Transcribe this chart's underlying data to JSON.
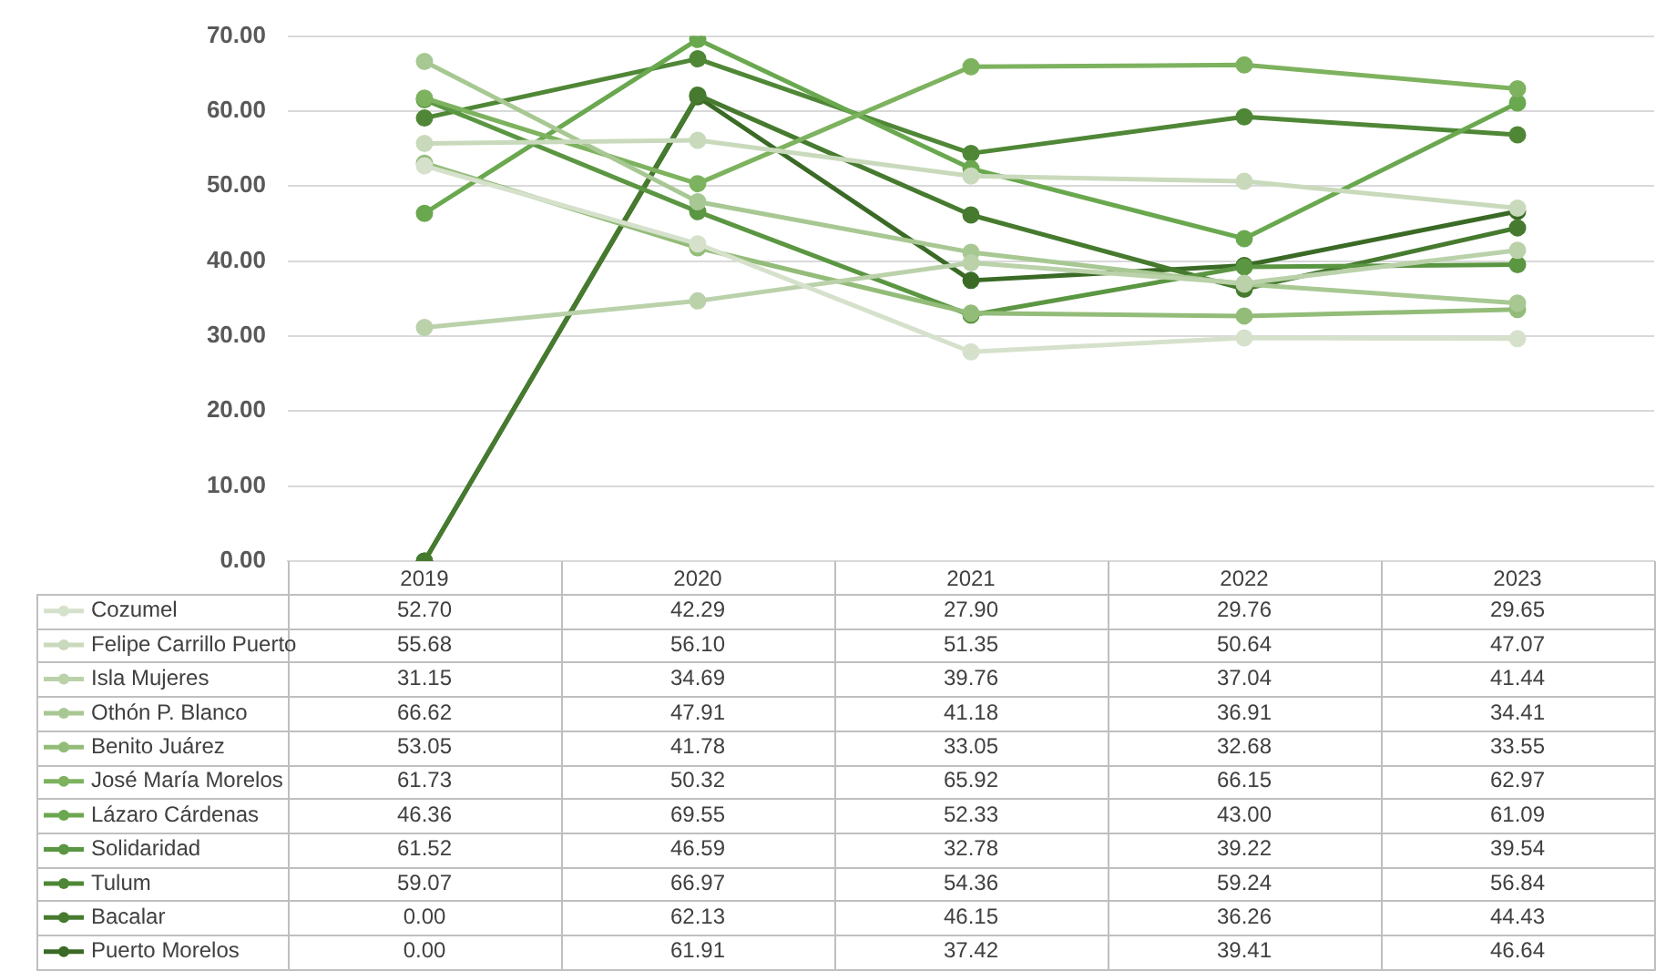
{
  "chart_data": {
    "type": "line",
    "categories": [
      "2019",
      "2020",
      "2021",
      "2022",
      "2023"
    ],
    "ylim": [
      0,
      70
    ],
    "yticks": [
      {
        "value": 0,
        "label": "0.00"
      },
      {
        "value": 10,
        "label": "10.00"
      },
      {
        "value": 20,
        "label": "20.00"
      },
      {
        "value": 30,
        "label": "30.00"
      },
      {
        "value": 40,
        "label": "40.00"
      },
      {
        "value": 50,
        "label": "50.00"
      },
      {
        "value": 60,
        "label": "60.00"
      },
      {
        "value": 70,
        "label": "70.00"
      }
    ],
    "grid": "y",
    "legend": "bottom",
    "marker": "circle",
    "line_style": "solid",
    "series": [
      {
        "name": "Cozumel",
        "color": "#d6e1cc",
        "values": [
          52.7,
          42.29,
          27.9,
          29.76,
          29.65
        ],
        "value_labels": [
          "52.70",
          "42.29",
          "27.90",
          "29.76",
          "29.65"
        ]
      },
      {
        "name": "Felipe Carrillo Puerto",
        "color": "#c9dabc",
        "values": [
          55.68,
          56.1,
          51.35,
          50.64,
          47.07
        ],
        "value_labels": [
          "55.68",
          "56.10",
          "51.35",
          "50.64",
          "47.07"
        ]
      },
      {
        "name": "Isla Mujeres",
        "color": "#bad1aa",
        "values": [
          31.15,
          34.69,
          39.76,
          37.04,
          41.44
        ],
        "value_labels": [
          "31.15",
          "34.69",
          "39.76",
          "37.04",
          "41.44"
        ]
      },
      {
        "name": "Othón P. Blanco",
        "color": "#a8c893",
        "values": [
          66.62,
          47.91,
          41.18,
          36.91,
          34.41
        ],
        "value_labels": [
          "66.62",
          "47.91",
          "41.18",
          "36.91",
          "34.41"
        ]
      },
      {
        "name": "Benito Juárez",
        "color": "#93bc79",
        "values": [
          53.05,
          41.78,
          33.05,
          32.68,
          33.55
        ],
        "value_labels": [
          "53.05",
          "41.78",
          "33.05",
          "32.68",
          "33.55"
        ]
      },
      {
        "name": "José María Morelos",
        "color": "#7db25f",
        "values": [
          61.73,
          50.32,
          65.92,
          66.15,
          62.97
        ],
        "value_labels": [
          "61.73",
          "50.32",
          "65.92",
          "66.15",
          "62.97"
        ]
      },
      {
        "name": "Lázaro Cárdenas",
        "color": "#6aa84f",
        "values": [
          46.36,
          69.55,
          52.33,
          43.0,
          61.09
        ],
        "value_labels": [
          "46.36",
          "69.55",
          "52.33",
          "43.00",
          "61.09"
        ]
      },
      {
        "name": "Solidaridad",
        "color": "#5b9642",
        "values": [
          61.52,
          46.59,
          32.78,
          39.22,
          39.54
        ],
        "value_labels": [
          "61.52",
          "46.59",
          "32.78",
          "39.22",
          "39.54"
        ]
      },
      {
        "name": "Tulum",
        "color": "#4f8737",
        "values": [
          59.07,
          66.97,
          54.36,
          59.24,
          56.84
        ],
        "value_labels": [
          "59.07",
          "66.97",
          "54.36",
          "59.24",
          "56.84"
        ]
      },
      {
        "name": "Bacalar",
        "color": "#467a2f",
        "values": [
          0.0,
          62.13,
          46.15,
          36.26,
          44.43
        ],
        "value_labels": [
          "0.00",
          "62.13",
          "46.15",
          "36.26",
          "44.43"
        ]
      },
      {
        "name": "Puerto Morelos",
        "color": "#3a6a26",
        "values": [
          0.0,
          61.91,
          37.42,
          39.41,
          46.64
        ],
        "value_labels": [
          "0.00",
          "61.91",
          "37.42",
          "39.41",
          "46.64"
        ]
      }
    ]
  }
}
